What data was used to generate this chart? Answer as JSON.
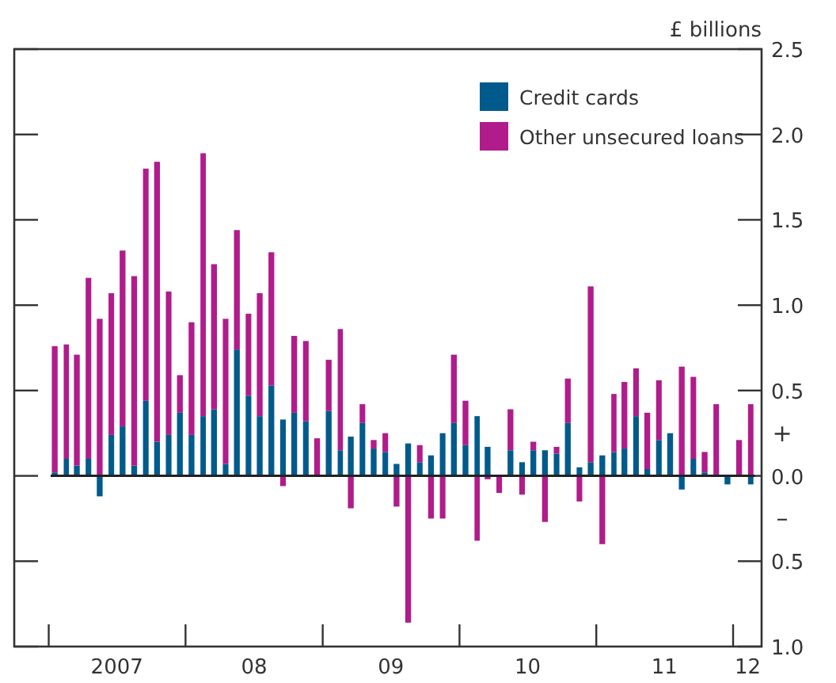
{
  "chart_data": {
    "type": "bar",
    "stacked": true,
    "ylabel": "£ billions",
    "x": [
      "2007-01",
      "2007-02",
      "2007-03",
      "2007-04",
      "2007-05",
      "2007-06",
      "2007-07",
      "2007-08",
      "2007-09",
      "2007-10",
      "2007-11",
      "2007-12",
      "2008-01",
      "2008-02",
      "2008-03",
      "2008-04",
      "2008-05",
      "2008-06",
      "2008-07",
      "2008-08",
      "2008-09",
      "2008-10",
      "2008-11",
      "2008-12",
      "2009-01",
      "2009-02",
      "2009-03",
      "2009-04",
      "2009-05",
      "2009-06",
      "2009-07",
      "2009-08",
      "2009-09",
      "2009-10",
      "2009-11",
      "2009-12",
      "2010-01",
      "2010-02",
      "2010-03",
      "2010-04",
      "2010-05",
      "2010-06",
      "2010-07",
      "2010-08",
      "2010-09",
      "2010-10",
      "2010-11",
      "2010-12",
      "2011-01",
      "2011-02",
      "2011-03",
      "2011-04",
      "2011-05",
      "2011-06",
      "2011-07",
      "2011-08",
      "2011-09",
      "2011-10",
      "2011-11",
      "2011-12",
      "2012-01",
      "2012-02"
    ],
    "series": [
      {
        "name": "Credit cards",
        "color": "#005a8c",
        "values": [
          0.02,
          0.1,
          0.06,
          0.1,
          -0.12,
          0.24,
          0.29,
          0.06,
          0.44,
          0.2,
          0.24,
          0.37,
          0.24,
          0.35,
          0.39,
          0.07,
          0.74,
          0.47,
          0.35,
          0.53,
          0.33,
          0.37,
          0.32,
          null,
          0.38,
          0.15,
          0.23,
          0.31,
          0.16,
          0.14,
          0.07,
          0.19,
          0.08,
          0.12,
          0.25,
          0.31,
          0.18,
          0.35,
          0.17,
          null,
          0.15,
          0.08,
          0.15,
          0.15,
          0.13,
          0.31,
          0.05,
          0.08,
          0.12,
          0.14,
          0.16,
          0.35,
          0.04,
          0.21,
          0.25,
          -0.08,
          0.1,
          0.02,
          null,
          -0.05,
          null,
          -0.05
        ]
      },
      {
        "name": "Other unsecured loans",
        "color": "#b01c8b",
        "values": [
          0.74,
          0.67,
          0.65,
          1.06,
          0.92,
          0.83,
          1.03,
          1.11,
          1.36,
          1.64,
          0.84,
          0.22,
          0.66,
          1.54,
          0.85,
          0.85,
          0.7,
          0.48,
          0.72,
          0.78,
          -0.06,
          0.45,
          0.47,
          0.22,
          0.3,
          0.71,
          -0.19,
          0.11,
          0.05,
          0.11,
          -0.18,
          -0.86,
          0.1,
          -0.25,
          -0.25,
          0.4,
          0.26,
          -0.38,
          -0.02,
          -0.1,
          0.24,
          -0.11,
          0.05,
          -0.27,
          0.04,
          0.26,
          -0.15,
          1.03,
          -0.4,
          0.34,
          0.39,
          0.28,
          0.33,
          0.35,
          null,
          0.64,
          0.48,
          0.12,
          0.42,
          null,
          0.21,
          0.42
        ]
      }
    ],
    "xlim": [
      "2006-09-15",
      "2012-03-01"
    ],
    "xticks": [
      {
        "value": "2006-12-16",
        "label": null
      },
      {
        "value": "2007-12-16",
        "label": null
      },
      {
        "value": "2008-12-16",
        "label": null
      },
      {
        "value": "2009-12-16",
        "label": null
      },
      {
        "value": "2010-12-16",
        "label": null
      },
      {
        "value": "2011-12-16",
        "label": null
      },
      {
        "value": "2007-06-16",
        "label": "2007"
      },
      {
        "value": "2008-06-16",
        "label": "08"
      },
      {
        "value": "2009-06-16",
        "label": "09"
      },
      {
        "value": "2010-06-16",
        "label": "10"
      },
      {
        "value": "2011-06-16",
        "label": "11"
      },
      {
        "value": "2012-01-24",
        "label": "12"
      }
    ],
    "ylim": [
      -1.0,
      2.5
    ],
    "yticks": [
      {
        "value": 2.5,
        "label": "2.5"
      },
      {
        "value": 2.0,
        "label": "2.0"
      },
      {
        "value": 1.5,
        "label": "1.5"
      },
      {
        "value": 1.0,
        "label": "1.0"
      },
      {
        "value": 0.5,
        "label": "0.5"
      },
      {
        "value": 0,
        "label": "0.0"
      },
      {
        "value": -0.5,
        "label": "0.5"
      },
      {
        "value": -1.0,
        "label": "1.0"
      }
    ],
    "ref_lines": [
      {
        "axis": "y",
        "value": 0,
        "color": "#222222"
      }
    ],
    "annotations": [
      "+",
      "–"
    ],
    "legend": "top right",
    "grid": false
  }
}
